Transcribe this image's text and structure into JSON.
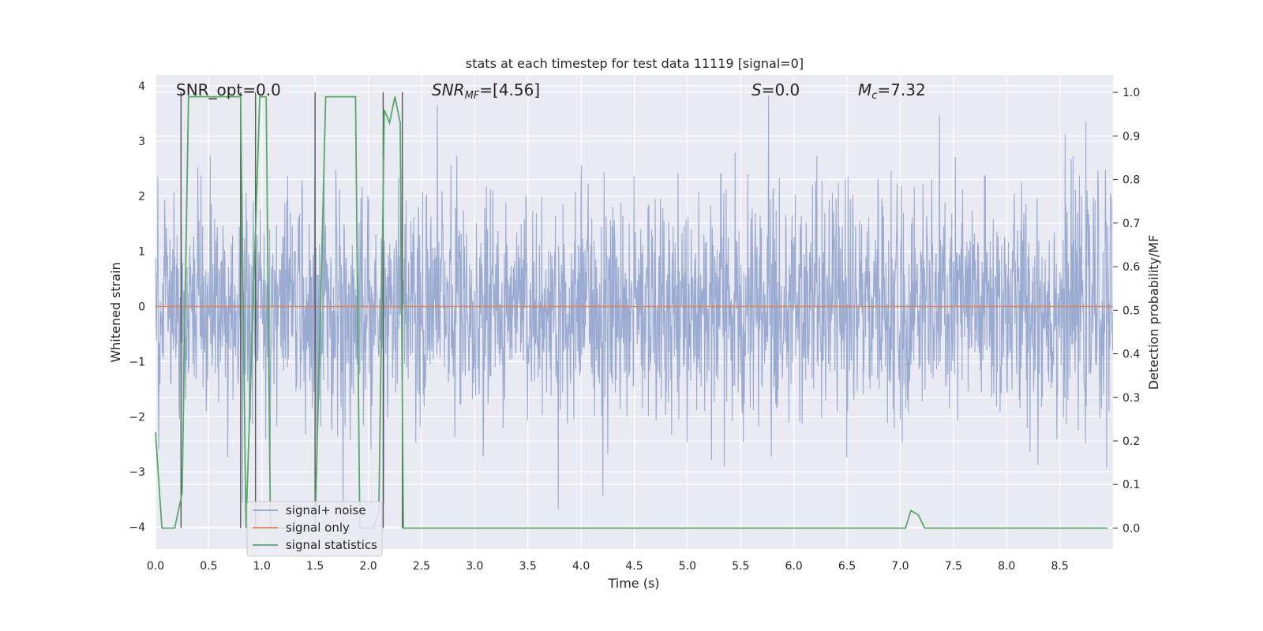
{
  "chart_data": {
    "type": "line",
    "title": "stats at each timestep for test data 11119 [signal=0]",
    "xlabel": "Time (s)",
    "ylabel_left": "Whitened strain",
    "ylabel_right": "Detection probability/MF",
    "xlim": [
      0.0,
      9.0
    ],
    "ylim_left": [
      -4.4,
      4.2
    ],
    "ylim_right": [
      -0.048,
      1.04
    ],
    "xticks": [
      "0.0",
      "0.5",
      "1.0",
      "1.5",
      "2.0",
      "2.5",
      "3.0",
      "3.5",
      "4.0",
      "4.5",
      "5.0",
      "5.5",
      "6.0",
      "6.5",
      "7.0",
      "7.5",
      "8.0",
      "8.5"
    ],
    "yticks_left": [
      "4",
      "3",
      "2",
      "1",
      "0",
      "−1",
      "−2",
      "−3",
      "−4"
    ],
    "yticks_right": [
      "1.0",
      "0.9",
      "0.8",
      "0.7",
      "0.6",
      "0.5",
      "0.4",
      "0.3",
      "0.2",
      "0.1",
      "0.0"
    ],
    "grid": true,
    "legend_position": "bottom-left",
    "annotations": {
      "snr_opt": "SNR_opt=0.0",
      "snr_mf": "SNR_MF=[4.56]",
      "s": "S=0.0",
      "mc": "M_c=7.32"
    },
    "series": [
      {
        "name": "signal+ noise",
        "color": "#8c9fcb",
        "axis": "left",
        "description": "whitened noise, approx. +/-2 sigma band, no signal",
        "envelope": [
          -2.2,
          2.2
        ],
        "peaks": [
          3.9,
          -3.9
        ]
      },
      {
        "name": "signal only",
        "color": "#dd8452",
        "axis": "left",
        "x": [
          0.0,
          9.0
        ],
        "y": [
          0.0,
          0.0
        ]
      },
      {
        "name": "signal statistics",
        "color": "#55a868",
        "axis": "right",
        "x": [
          0.0,
          0.06,
          0.18,
          0.25,
          0.31,
          0.35,
          0.6,
          0.8,
          0.85,
          0.98,
          1.04,
          1.08,
          1.5,
          1.6,
          1.88,
          1.92,
          2.05,
          2.1,
          2.15,
          2.2,
          2.25,
          2.3,
          2.33,
          2.38,
          7.05,
          7.1,
          7.17,
          7.23,
          8.5,
          8.95
        ],
        "y": [
          0.22,
          0.0,
          0.0,
          0.08,
          0.99,
          0.99,
          0.99,
          0.99,
          0.0,
          0.99,
          0.99,
          0.0,
          0.0,
          0.99,
          0.99,
          0.0,
          0.0,
          0.04,
          0.96,
          0.93,
          0.99,
          0.93,
          0.0,
          0.0,
          0.0,
          0.04,
          0.03,
          0.0,
          0.0,
          0.0
        ]
      }
    ],
    "vertical_markers_x": [
      0.24,
      0.8,
      0.94,
      1.5,
      2.14,
      2.32
    ]
  },
  "legend": {
    "signal_noise": "signal+ noise",
    "signal_only": "signal only",
    "signal_statistics": "signal statistics"
  }
}
